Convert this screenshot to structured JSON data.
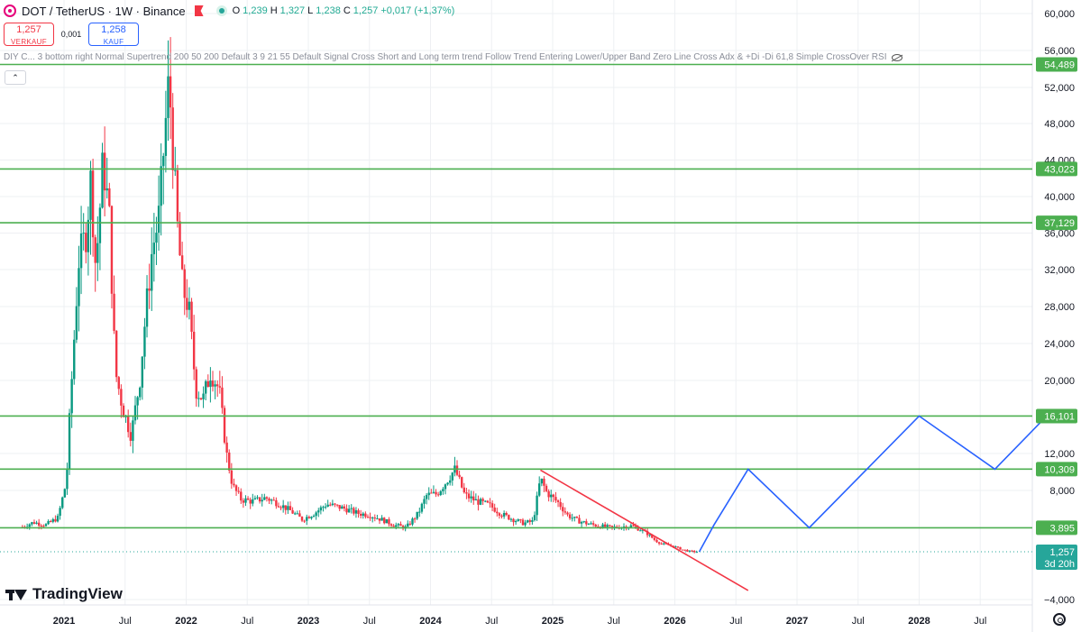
{
  "header": {
    "symbol_title": "DOT / TetherUS · 1W · Binance",
    "ohlc": [
      {
        "k": "O",
        "v": "1,239"
      },
      {
        "k": "H",
        "v": "1,327"
      },
      {
        "k": "L",
        "v": "1,238"
      },
      {
        "k": "C",
        "v": "1,257"
      },
      {
        "k": "",
        "v": "+0,017 (+1,37%)"
      }
    ]
  },
  "trade": {
    "sell_price": "1,257",
    "sell_label": "VERKAUF",
    "spread": "0,001",
    "buy_price": "1,258",
    "buy_label": "KAUF"
  },
  "indicator_text": "DIY C... 3 bottom right Normal Supertrend 200 50 200 Default 3 9 21 55 Default Signal Cross Short and Long term trend Follow Trend Entering Lower/Upper Band Zero Line Cross Adx & +Di -Di 61,8 Simple CrossOver RSI",
  "collapse_label": "⌃",
  "logo_text": "TradingView",
  "colors": {
    "up": "#089981",
    "down": "#f23645",
    "level": "#4caf50",
    "trendline": "#f23645",
    "projection": "#2962ff",
    "price_label": "#26a69a",
    "grid": "#eef0f3"
  },
  "chart_data": {
    "type": "candlestick",
    "ylim": [
      -4000,
      60000
    ],
    "y_ticks": [
      {
        "v": 60000,
        "label": "60,000"
      },
      {
        "v": 56000,
        "label": "56,000"
      },
      {
        "v": 52000,
        "label": "52,000"
      },
      {
        "v": 48000,
        "label": "48,000"
      },
      {
        "v": 44000,
        "label": "44,000"
      },
      {
        "v": 40000,
        "label": "40,000"
      },
      {
        "v": 36000,
        "label": "36,000"
      },
      {
        "v": 32000,
        "label": "32,000"
      },
      {
        "v": 28000,
        "label": "28,000"
      },
      {
        "v": 24000,
        "label": "24,000"
      },
      {
        "v": 20000,
        "label": "20,000"
      },
      {
        "v": 12000,
        "label": "12,000"
      },
      {
        "v": 8000,
        "label": "8,000"
      },
      {
        "v": -4000,
        "label": "−4,000"
      }
    ],
    "x_ticks": [
      {
        "d": 2021.0,
        "label": "2021",
        "bold": true
      },
      {
        "d": 2021.5,
        "label": "Jul",
        "bold": false
      },
      {
        "d": 2022.0,
        "label": "2022",
        "bold": true
      },
      {
        "d": 2022.5,
        "label": "Jul",
        "bold": false
      },
      {
        "d": 2023.0,
        "label": "2023",
        "bold": true
      },
      {
        "d": 2023.5,
        "label": "Jul",
        "bold": false
      },
      {
        "d": 2024.0,
        "label": "2024",
        "bold": true
      },
      {
        "d": 2024.5,
        "label": "Jul",
        "bold": false
      },
      {
        "d": 2025.0,
        "label": "2025",
        "bold": true
      },
      {
        "d": 2025.5,
        "label": "Jul",
        "bold": false
      },
      {
        "d": 2026.0,
        "label": "2026",
        "bold": true
      },
      {
        "d": 2026.5,
        "label": "Jul",
        "bold": false
      },
      {
        "d": 2027.0,
        "label": "2027",
        "bold": true
      },
      {
        "d": 2027.5,
        "label": "Jul",
        "bold": false
      },
      {
        "d": 2028.0,
        "label": "2028",
        "bold": true
      },
      {
        "d": 2028.5,
        "label": "Jul",
        "bold": false
      }
    ],
    "x_range": [
      2020.55,
      2029.0
    ],
    "levels": [
      {
        "value": 54489,
        "label": "54,489"
      },
      {
        "value": 43023,
        "label": "43,023"
      },
      {
        "value": 37129,
        "label": "37,129"
      },
      {
        "value": 16101,
        "label": "16,101"
      },
      {
        "value": 10309,
        "label": "10,309"
      },
      {
        "value": 3895,
        "label": "3,895"
      }
    ],
    "current_price": {
      "value": 1257,
      "label": "1,257",
      "countdown": "3d 20h"
    },
    "price_path": [
      [
        2020.66,
        4000
      ],
      [
        2020.75,
        4500
      ],
      [
        2020.85,
        4200
      ],
      [
        2020.95,
        5000
      ],
      [
        2021.02,
        9000
      ],
      [
        2021.05,
        17000
      ],
      [
        2021.12,
        33000
      ],
      [
        2021.18,
        36000
      ],
      [
        2021.22,
        42000
      ],
      [
        2021.26,
        32000
      ],
      [
        2021.32,
        44000
      ],
      [
        2021.37,
        38000
      ],
      [
        2021.42,
        21000
      ],
      [
        2021.48,
        17000
      ],
      [
        2021.55,
        14000
      ],
      [
        2021.62,
        20000
      ],
      [
        2021.66,
        26000
      ],
      [
        2021.72,
        34000
      ],
      [
        2021.78,
        38000
      ],
      [
        2021.82,
        46000
      ],
      [
        2021.86,
        53000
      ],
      [
        2021.92,
        38000
      ],
      [
        2021.97,
        30000
      ],
      [
        2022.02,
        28000
      ],
      [
        2022.08,
        19000
      ],
      [
        2022.14,
        18000
      ],
      [
        2022.2,
        21000
      ],
      [
        2022.27,
        19000
      ],
      [
        2022.33,
        12000
      ],
      [
        2022.38,
        8500
      ],
      [
        2022.45,
        7000
      ],
      [
        2022.55,
        6800
      ],
      [
        2022.65,
        7200
      ],
      [
        2022.75,
        6600
      ],
      [
        2022.85,
        5800
      ],
      [
        2022.95,
        4800
      ],
      [
        2023.05,
        5500
      ],
      [
        2023.15,
        6500
      ],
      [
        2023.3,
        6000
      ],
      [
        2023.4,
        5500
      ],
      [
        2023.5,
        5300
      ],
      [
        2023.6,
        4800
      ],
      [
        2023.7,
        4200
      ],
      [
        2023.8,
        3900
      ],
      [
        2023.9,
        5500
      ],
      [
        2023.97,
        7500
      ],
      [
        2024.05,
        7600
      ],
      [
        2024.12,
        8800
      ],
      [
        2024.2,
        10300
      ],
      [
        2024.28,
        7500
      ],
      [
        2024.38,
        6800
      ],
      [
        2024.48,
        6400
      ],
      [
        2024.58,
        5400
      ],
      [
        2024.68,
        4800
      ],
      [
        2024.76,
        4400
      ],
      [
        2024.84,
        4600
      ],
      [
        2024.9,
        9300
      ],
      [
        2024.95,
        7800
      ],
      [
        2025.05,
        6600
      ],
      [
        2025.12,
        5300
      ],
      [
        2025.2,
        4700
      ],
      [
        2025.3,
        4300
      ],
      [
        2025.38,
        4100
      ],
      [
        2025.48,
        3900
      ],
      [
        2025.56,
        4000
      ],
      [
        2025.64,
        4100
      ],
      [
        2025.72,
        3700
      ],
      [
        2025.78,
        3200
      ],
      [
        2025.84,
        2500
      ],
      [
        2025.9,
        2100
      ],
      [
        2025.98,
        1900
      ],
      [
        2026.06,
        1500
      ],
      [
        2026.12,
        1300
      ],
      [
        2026.18,
        1257
      ]
    ],
    "trendline": [
      [
        2024.9,
        10200
      ],
      [
        2026.6,
        -3000
      ]
    ],
    "projection": [
      [
        2026.2,
        1257
      ],
      [
        2026.32,
        4200
      ],
      [
        2026.6,
        10300
      ],
      [
        2027.1,
        3900
      ],
      [
        2028.0,
        16100
      ],
      [
        2028.62,
        10300
      ],
      [
        2029.0,
        15500
      ]
    ]
  }
}
